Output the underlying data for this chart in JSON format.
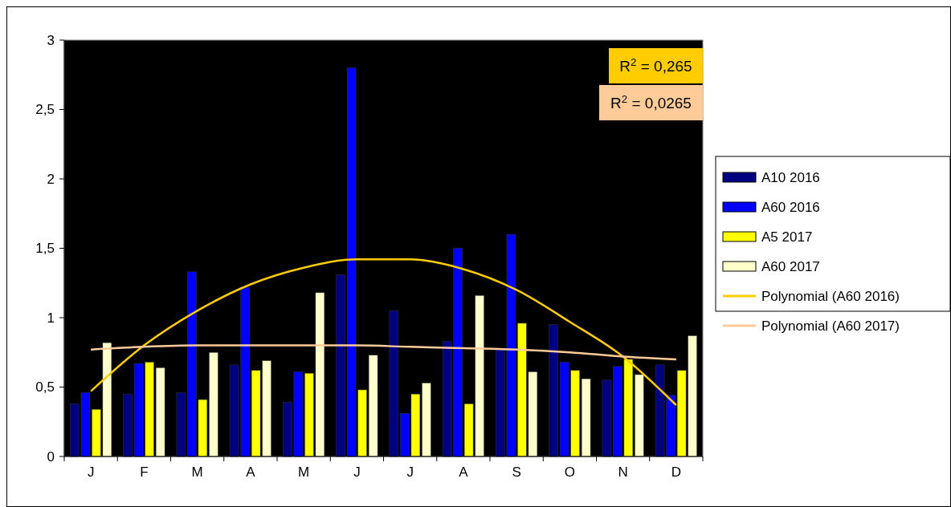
{
  "chart_data": {
    "type": "bar",
    "categories": [
      "J",
      "F",
      "M",
      "A",
      "M",
      "J",
      "J",
      "A",
      "S",
      "O",
      "N",
      "D"
    ],
    "series": [
      {
        "name": "A10 2016",
        "color": "#000080",
        "values": [
          0.38,
          0.45,
          0.46,
          0.66,
          0.39,
          1.31,
          1.05,
          0.83,
          0.78,
          0.95,
          0.55,
          0.66
        ]
      },
      {
        "name": "A60 2016",
        "color": "#0000ff",
        "values": [
          0.46,
          0.67,
          1.33,
          1.22,
          0.61,
          2.8,
          0.31,
          1.5,
          1.6,
          0.68,
          0.65,
          0.44
        ]
      },
      {
        "name": "A5 2017",
        "color": "#ffff00",
        "values": [
          0.34,
          0.68,
          0.41,
          0.62,
          0.6,
          0.48,
          0.45,
          0.38,
          0.96,
          0.62,
          0.7,
          0.62
        ]
      },
      {
        "name": "A60 2017",
        "color": "#ffffcc",
        "values": [
          0.82,
          0.64,
          0.75,
          0.69,
          1.18,
          0.73,
          0.53,
          1.16,
          0.61,
          0.56,
          0.59,
          0.87
        ]
      },
      {
        "name": "Polynomial (A60 2016)",
        "type": "line",
        "color": "#ffcc00",
        "values": [
          0.47,
          0.8,
          1.05,
          1.24,
          1.36,
          1.42,
          1.42,
          1.35,
          1.2,
          0.97,
          0.72,
          0.37
        ]
      },
      {
        "name": "Polynomial (A60 2017)",
        "type": "line",
        "color": "#ffcc99",
        "values": [
          0.77,
          0.79,
          0.8,
          0.8,
          0.8,
          0.8,
          0.79,
          0.78,
          0.77,
          0.75,
          0.72,
          0.7
        ]
      }
    ],
    "ylim": [
      0,
      3
    ],
    "yticks": [
      0,
      {
        "value": 0.5,
        "label": "0,5"
      },
      1,
      {
        "value": 1.5,
        "label": "1,5"
      },
      2,
      {
        "value": 2.5,
        "label": "2,5"
      },
      3
    ],
    "annotations": [
      "R$^{2}$ = 0,265",
      "R$^{2}$ = 0,0265"
    ],
    "legend": "right"
  }
}
